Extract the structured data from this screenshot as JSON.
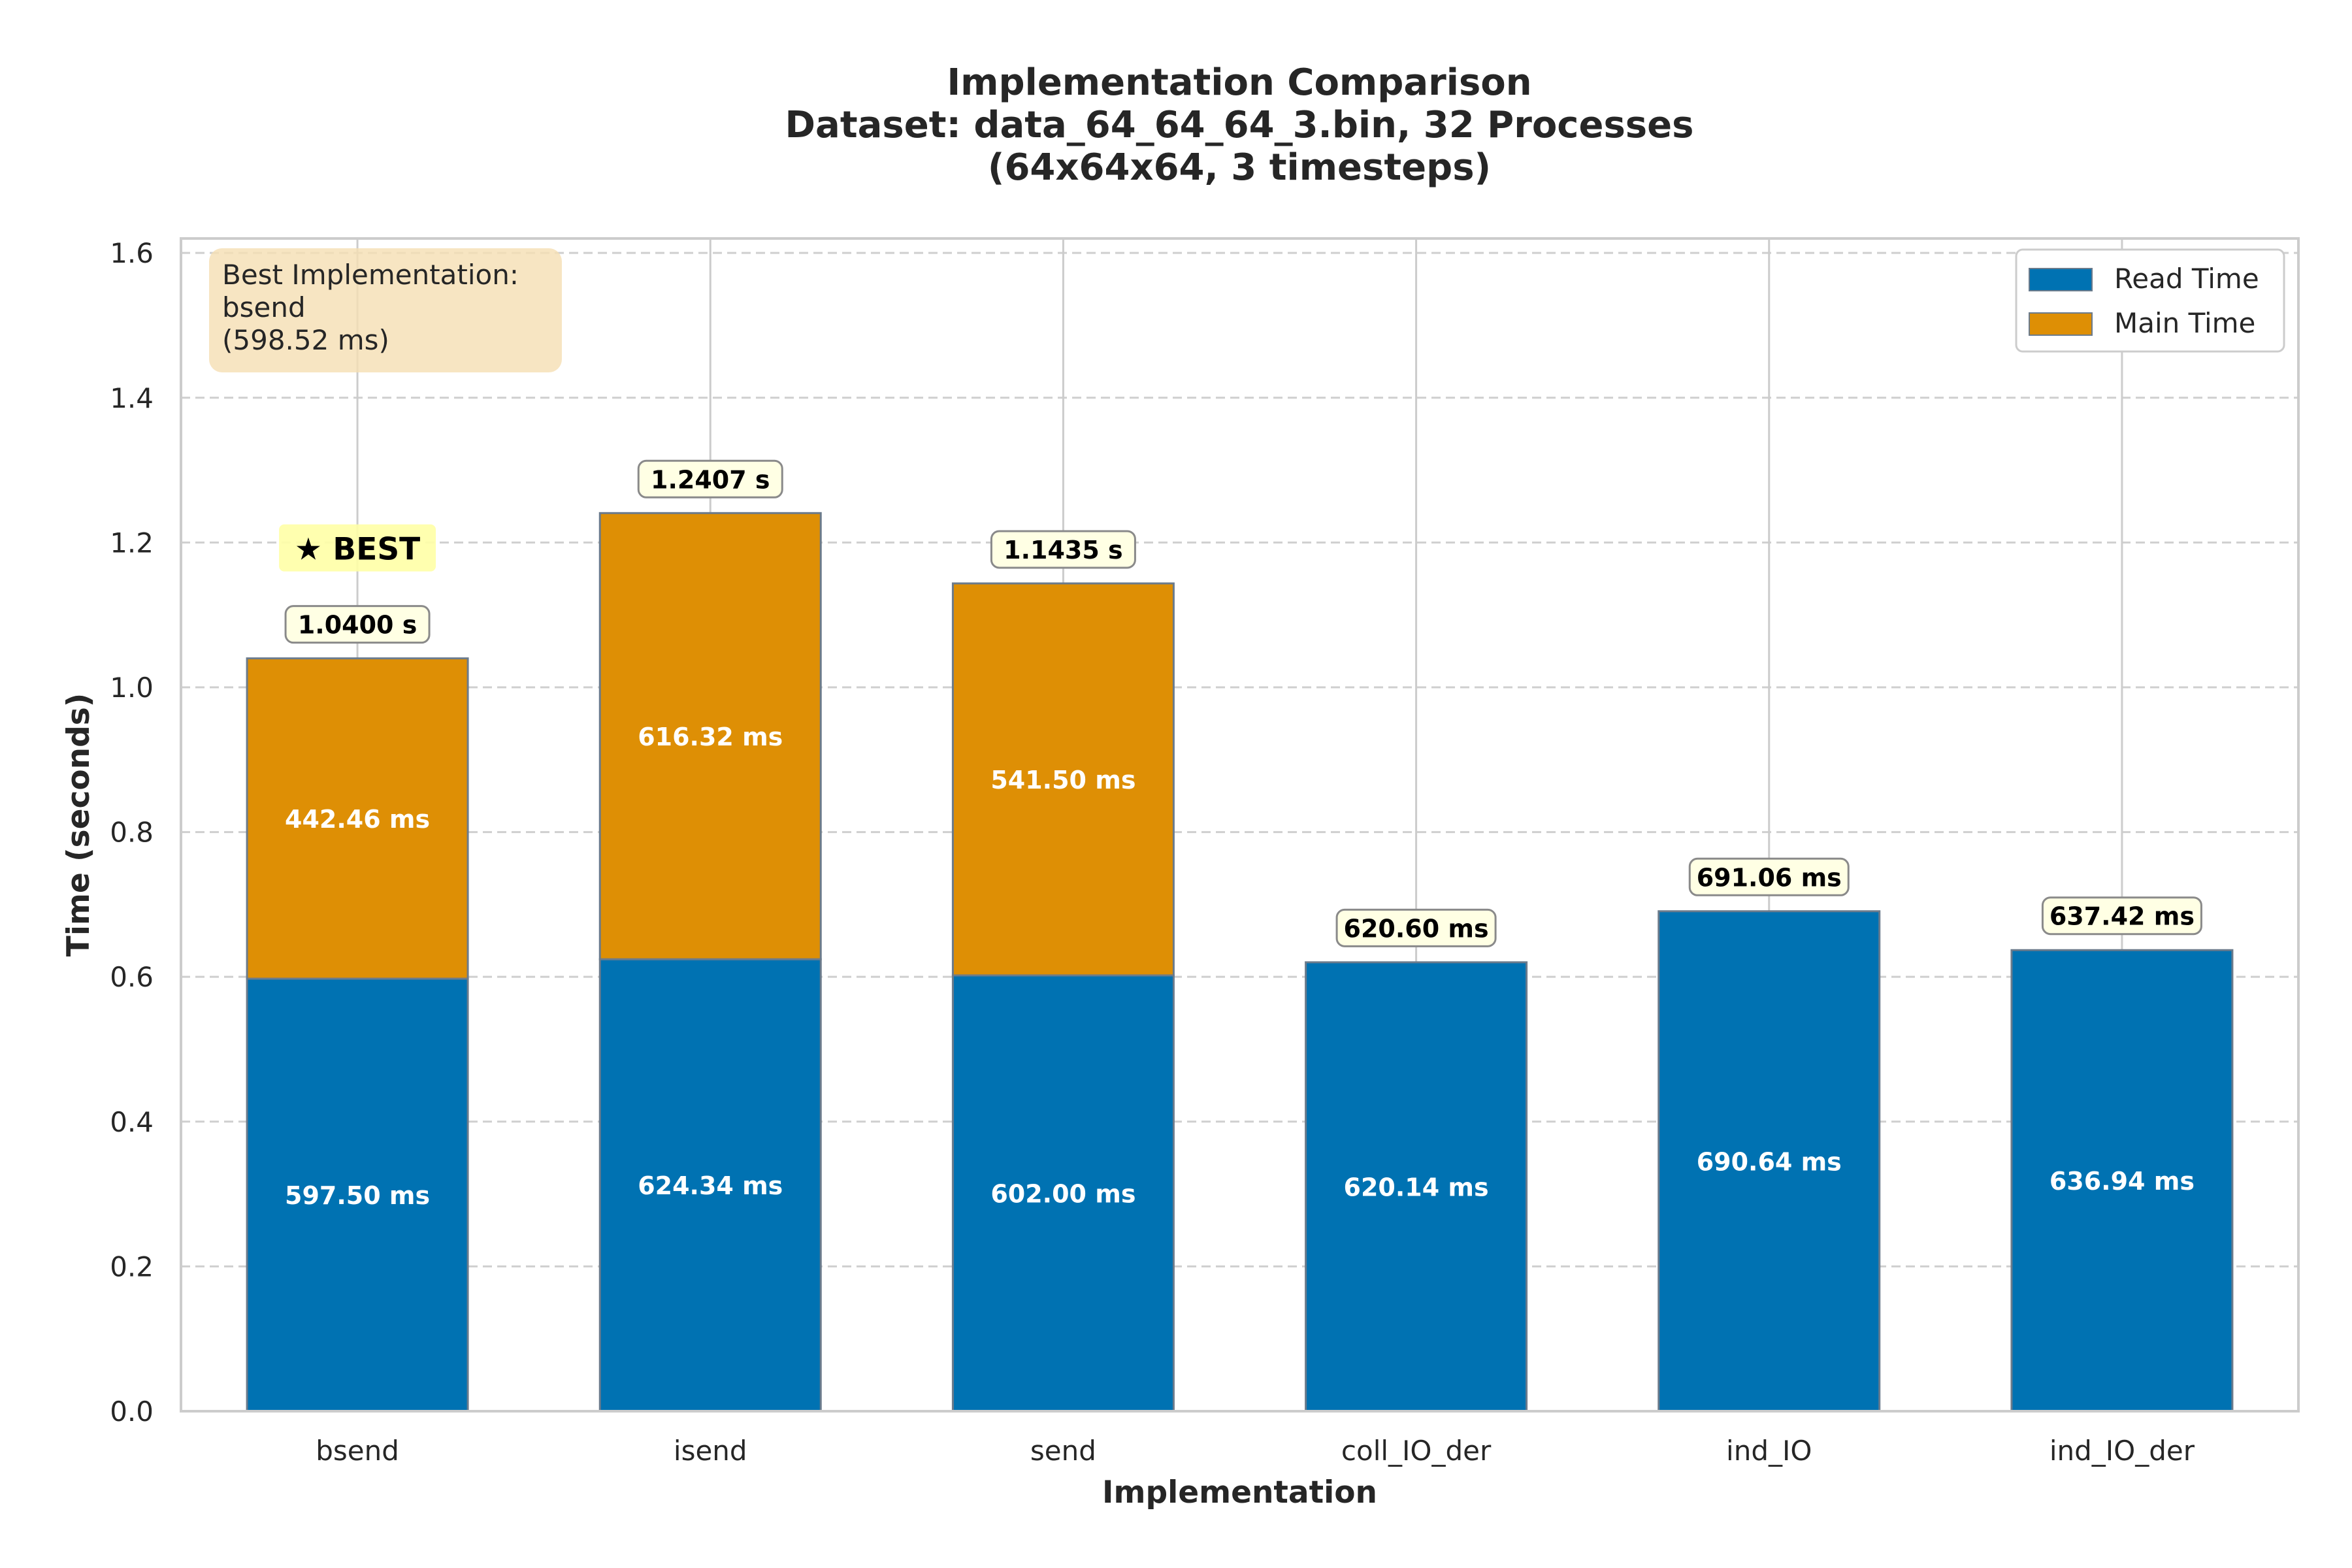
{
  "chart_data": {
    "type": "bar",
    "stacked": true,
    "title_lines": [
      "Implementation Comparison",
      "Dataset: data_64_64_64_3.bin, 32 Processes",
      "(64x64x64, 3 timesteps)"
    ],
    "xlabel": "Implementation",
    "ylabel": "Time (seconds)",
    "ylim": [
      0,
      1.62
    ],
    "yticks": [
      0.0,
      0.2,
      0.4,
      0.6,
      0.8,
      1.0,
      1.2,
      1.4,
      1.6
    ],
    "ytick_labels": [
      "0.0",
      "0.2",
      "0.4",
      "0.6",
      "0.8",
      "1.0",
      "1.2",
      "1.4",
      "1.6"
    ],
    "grid": true,
    "legend_position": "top-right",
    "categories": [
      "bsend",
      "isend",
      "send",
      "coll_IO_der",
      "ind_IO",
      "ind_IO_der"
    ],
    "series": [
      {
        "name": "Read Time",
        "color": "#0072B2",
        "values": [
          0.5975,
          0.62434,
          0.602,
          0.62014,
          0.69064,
          0.63694
        ],
        "labels": [
          "597.50 ms",
          "624.34 ms",
          "602.00 ms",
          "620.14 ms",
          "690.64 ms",
          "636.94 ms"
        ]
      },
      {
        "name": "Main Time",
        "color": "#DE8F05",
        "values": [
          0.44246,
          0.61632,
          0.5415,
          0,
          0,
          0
        ],
        "labels": [
          "442.46 ms",
          "616.32 ms",
          "541.50 ms",
          "",
          "",
          ""
        ]
      }
    ],
    "totals": [
      1.04,
      1.2407,
      1.1435,
      0.6206,
      0.69106,
      0.63742
    ],
    "total_labels": [
      "1.0400 s",
      "1.2407 s",
      "1.1435 s",
      "620.60 ms",
      "691.06 ms",
      "637.42 ms"
    ],
    "best_index": 0,
    "best_label": "★ BEST",
    "info_box": {
      "lines": [
        "Best Implementation:",
        "bsend",
        "(598.52 ms)"
      ],
      "color": "#F5DEB3"
    }
  }
}
